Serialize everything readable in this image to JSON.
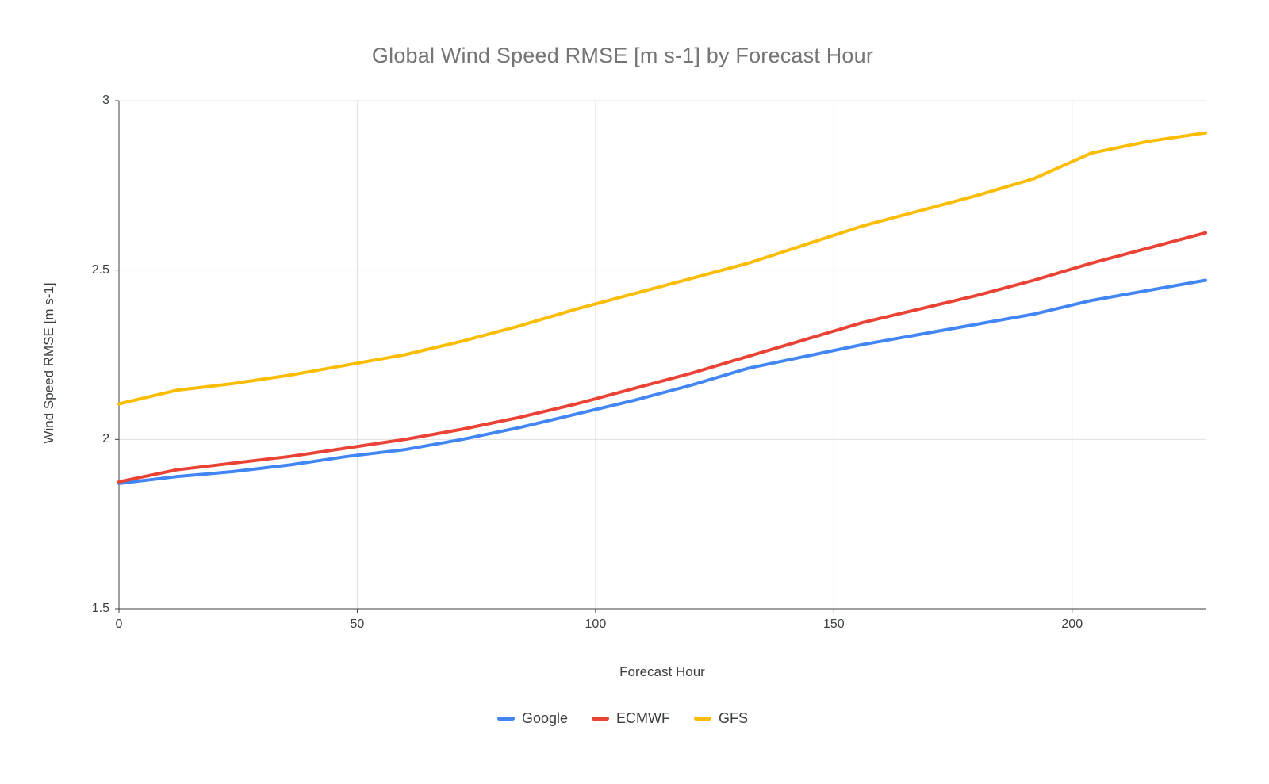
{
  "chart": {
    "title": "Global Wind Speed RMSE [m s-1] by Forecast Hour"
  },
  "chart_data": {
    "type": "line",
    "title": "Global Wind Speed RMSE [m s-1] by Forecast Hour",
    "xlabel": "Forecast Hour",
    "ylabel": "Wind Speed RMSE [m s-1]",
    "xlim": [
      0,
      228
    ],
    "ylim": [
      1.5,
      3
    ],
    "x_ticks": [
      0,
      50,
      100,
      150,
      200
    ],
    "x_tick_labels": [
      "0",
      "50",
      "100",
      "150",
      "200"
    ],
    "y_ticks": [
      1.5,
      2,
      2.5,
      3
    ],
    "y_tick_labels": [
      "1.5",
      "2",
      "2.5",
      "3"
    ],
    "grid": true,
    "legend_position": "bottom",
    "x": [
      0,
      12,
      24,
      36,
      48,
      60,
      72,
      84,
      96,
      108,
      120,
      132,
      144,
      156,
      168,
      180,
      192,
      204,
      216,
      228
    ],
    "series": [
      {
        "name": "Google",
        "color": "#4285F4",
        "values": [
          1.87,
          1.89,
          1.905,
          1.925,
          1.95,
          1.97,
          2.0,
          2.035,
          2.075,
          2.115,
          2.16,
          2.21,
          2.245,
          2.28,
          2.31,
          2.34,
          2.37,
          2.41,
          2.44,
          2.47
        ]
      },
      {
        "name": "ECMWF",
        "color": "#EA4335",
        "values": [
          1.875,
          1.91,
          1.93,
          1.95,
          1.975,
          2.0,
          2.03,
          2.065,
          2.105,
          2.15,
          2.195,
          2.245,
          2.295,
          2.345,
          2.385,
          2.425,
          2.47,
          2.52,
          2.565,
          2.61
        ]
      },
      {
        "name": "GFS",
        "color": "#FBBC04",
        "values": [
          2.105,
          2.145,
          2.165,
          2.19,
          2.22,
          2.25,
          2.29,
          2.335,
          2.385,
          2.43,
          2.475,
          2.52,
          2.575,
          2.63,
          2.675,
          2.72,
          2.77,
          2.845,
          2.88,
          2.905
        ]
      }
    ]
  },
  "style": {
    "background": "#ffffff",
    "grid_color": "#e0e0e0",
    "axis_color": "#424242",
    "title_color": "#757575",
    "label_color": "#3c4043"
  }
}
